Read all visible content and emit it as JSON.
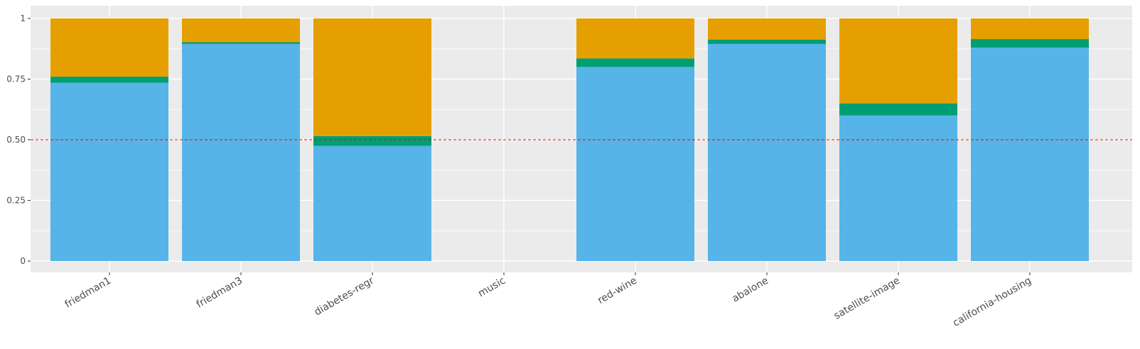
{
  "chart_data": {
    "type": "bar",
    "stacked": true,
    "categories": [
      "friedman1",
      "friedman3",
      "diabetes-regr",
      "music",
      "red-wine",
      "abalone",
      "satellite-image",
      "california-housing"
    ],
    "series": [
      {
        "color": "#56B4E9",
        "values": [
          0.735,
          0.895,
          0.475,
          0,
          0.8,
          0.895,
          0.6,
          0.88
        ]
      },
      {
        "color": "#009E73",
        "values": [
          0.025,
          0.007,
          0.04,
          0,
          0.035,
          0.018,
          0.05,
          0.035
        ]
      },
      {
        "color": "#E69F00",
        "values": [
          0.24,
          0.098,
          0.485,
          0,
          0.165,
          0.087,
          0.35,
          0.085
        ]
      }
    ],
    "ylim": [
      0,
      1
    ],
    "yticks": [
      0,
      0.25,
      0.5,
      0.75,
      1
    ],
    "ytick_labels": [
      "0",
      "0.25",
      "0.50",
      "0.75",
      "1"
    ],
    "reference_line": {
      "y": 0.5,
      "color": "#ff0000",
      "style": "dashed"
    },
    "panel_background": "#EBEBEB",
    "grid": true,
    "xlabel": "",
    "ylabel": "",
    "title": ""
  }
}
